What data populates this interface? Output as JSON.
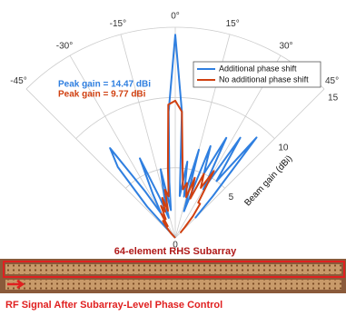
{
  "chart_data": {
    "type": "polar",
    "thetaticks": [
      {
        "value": -45,
        "label": "-45°"
      },
      {
        "value": -30,
        "label": "-30°"
      },
      {
        "value": -15,
        "label": "-15°"
      },
      {
        "value": 0,
        "label": "0°"
      },
      {
        "value": 15,
        "label": "15°"
      },
      {
        "value": 30,
        "label": "30°"
      },
      {
        "value": 45,
        "label": "45°"
      }
    ],
    "thetalim": [
      -45,
      45
    ],
    "rlim": [
      0,
      15
    ],
    "rticks": [
      0,
      5,
      10,
      15
    ],
    "rlabel": "Beam gain (dBi)",
    "grid": true,
    "legend": "upper right",
    "annotations": [
      {
        "text": "Peak gain = 14.47 dBi",
        "color": "#2f7fe0"
      },
      {
        "text": "Peak gain = 9.77 dBi",
        "color": "#d04010"
      }
    ],
    "theta": [
      -45,
      -42,
      -39,
      -36,
      -33,
      -30,
      -27,
      -24,
      -21,
      -18,
      -15,
      -12,
      -9,
      -6,
      -3,
      0,
      3,
      6,
      9,
      12,
      15,
      18,
      21,
      24,
      27,
      30,
      33,
      36,
      39,
      42,
      45
    ],
    "series": [
      {
        "name": "Additional phase shift",
        "color": "#2f7fe0",
        "values": [
          0,
          3,
          6.5,
          7.9,
          4,
          2,
          3.5,
          6.2,
          3,
          1.5,
          3,
          5,
          2,
          4,
          9,
          14.47,
          9,
          3,
          5.5,
          3,
          6.5,
          2,
          7,
          5,
          8,
          4,
          8.5,
          5,
          9.2,
          4,
          2
        ]
      },
      {
        "name": "No additional phase shift",
        "color": "#d04010",
        "values": [
          0,
          0.5,
          1,
          1.5,
          1,
          2,
          1.5,
          2.5,
          2,
          3,
          2,
          3.5,
          3,
          5,
          9.5,
          9.77,
          9,
          5,
          3.5,
          4,
          3,
          4.5,
          3,
          5,
          4,
          5.5,
          3,
          3,
          2,
          1,
          0.5
        ]
      }
    ]
  },
  "figure": {
    "label_top": "64-element RHS Subarray",
    "label_bottom": "RF Signal After Subarray-Level Phase Control"
  }
}
